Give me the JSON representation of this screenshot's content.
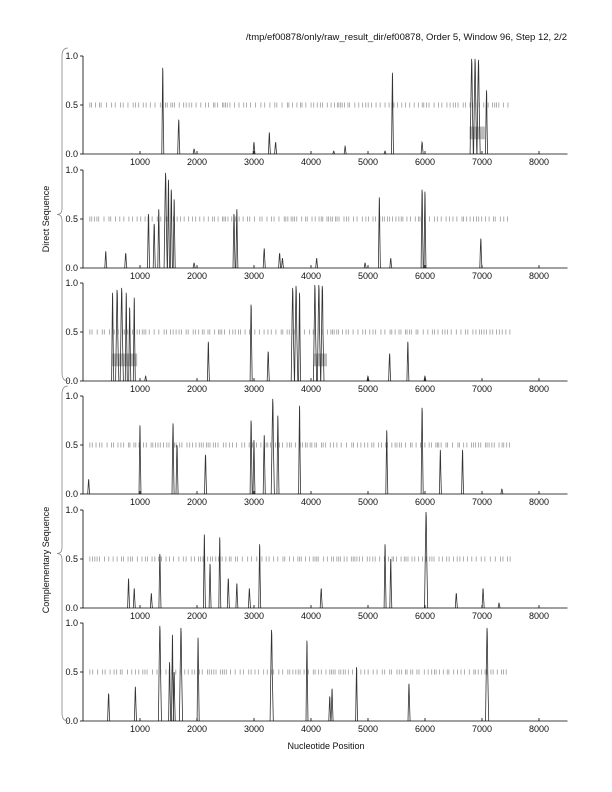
{
  "chart_data": {
    "type": "line",
    "title": "/tmp/ef00878/only/raw_result_dir/ef00878, Order 5, Window 96, Step 12, 2/2",
    "xlabel": "Nucleotide Position",
    "group_labels": [
      "Direct Sequence",
      "Complementary Sequence"
    ],
    "xlim": [
      0,
      8500
    ],
    "ylim": [
      0,
      1
    ],
    "xticks": [
      1000,
      2000,
      3000,
      4000,
      5000,
      6000,
      7000,
      8000
    ],
    "xtick_labels": [
      "1000",
      "2000",
      "3000",
      "4000",
      "5000",
      "6000",
      "7000",
      "8000"
    ],
    "yticks": [
      0,
      0.5,
      1
    ],
    "ytick_labels": [
      "0.0",
      "0.5",
      "1.0"
    ],
    "orf_mark_level": 0.5,
    "orf_mark_range": [
      120,
      7500
    ],
    "panels": [
      {
        "name": "direct-frame-1",
        "group": 0,
        "peaks": [
          [
            1400,
            0.88
          ],
          [
            1680,
            0.35
          ],
          [
            1950,
            0.05
          ],
          [
            3000,
            0.12
          ],
          [
            3270,
            0.22
          ],
          [
            3380,
            0.12
          ],
          [
            4400,
            0.03
          ],
          [
            4600,
            0.08
          ],
          [
            5300,
            0.03
          ],
          [
            5430,
            0.83
          ],
          [
            5950,
            0.12
          ],
          [
            6820,
            0.97
          ],
          [
            6880,
            0.97
          ],
          [
            6940,
            0.96
          ],
          [
            7080,
            0.65
          ]
        ],
        "boxes": [
          [
            6780,
            7050
          ]
        ]
      },
      {
        "name": "direct-frame-2",
        "group": 0,
        "peaks": [
          [
            400,
            0.17
          ],
          [
            750,
            0.15
          ],
          [
            1150,
            0.55
          ],
          [
            1250,
            0.45
          ],
          [
            1330,
            0.6
          ],
          [
            1450,
            0.97
          ],
          [
            1500,
            0.9
          ],
          [
            1550,
            0.8
          ],
          [
            1600,
            0.7
          ],
          [
            1950,
            0.05
          ],
          [
            2650,
            0.55
          ],
          [
            2700,
            0.6
          ],
          [
            3180,
            0.2
          ],
          [
            3450,
            0.15
          ],
          [
            3500,
            0.1
          ],
          [
            4100,
            0.1
          ],
          [
            4950,
            0.05
          ],
          [
            5200,
            0.72
          ],
          [
            5400,
            0.1
          ],
          [
            5950,
            0.8
          ],
          [
            6000,
            0.78
          ],
          [
            6980,
            0.3
          ]
        ],
        "boxes": []
      },
      {
        "name": "direct-frame-3",
        "group": 0,
        "peaks": [
          [
            520,
            0.9
          ],
          [
            600,
            0.93
          ],
          [
            680,
            0.95
          ],
          [
            760,
            0.9
          ],
          [
            820,
            0.75
          ],
          [
            900,
            0.85
          ],
          [
            1100,
            0.05
          ],
          [
            2200,
            0.4
          ],
          [
            2950,
            0.78
          ],
          [
            3250,
            0.3
          ],
          [
            3680,
            0.95
          ],
          [
            3740,
            0.97
          ],
          [
            3800,
            0.9
          ],
          [
            4070,
            0.98
          ],
          [
            4140,
            0.98
          ],
          [
            4200,
            0.97
          ],
          [
            5000,
            0.05
          ],
          [
            5380,
            0.28
          ],
          [
            5700,
            0.4
          ],
          [
            6000,
            0.05
          ]
        ],
        "boxes": [
          [
            500,
            950
          ],
          [
            4050,
            4280
          ]
        ]
      },
      {
        "name": "complementary-frame-1",
        "group": 1,
        "peaks": [
          [
            100,
            0.15
          ],
          [
            1000,
            0.7
          ],
          [
            1580,
            0.72
          ],
          [
            1650,
            0.5
          ],
          [
            2150,
            0.4
          ],
          [
            2950,
            0.75
          ],
          [
            3000,
            0.55
          ],
          [
            3180,
            0.6
          ],
          [
            3330,
            0.97
          ],
          [
            3420,
            0.8
          ],
          [
            3800,
            0.9
          ],
          [
            5330,
            0.65
          ],
          [
            5950,
            0.88
          ],
          [
            6270,
            0.45
          ],
          [
            6660,
            0.45
          ],
          [
            7350,
            0.05
          ]
        ],
        "boxes": []
      },
      {
        "name": "complementary-frame-2",
        "group": 1,
        "peaks": [
          [
            800,
            0.3
          ],
          [
            900,
            0.2
          ],
          [
            1200,
            0.15
          ],
          [
            1350,
            0.55
          ],
          [
            2130,
            0.75
          ],
          [
            2230,
            0.45
          ],
          [
            2400,
            0.72
          ],
          [
            2550,
            0.3
          ],
          [
            2700,
            0.25
          ],
          [
            2920,
            0.2
          ],
          [
            3100,
            0.65
          ],
          [
            4180,
            0.2
          ],
          [
            5300,
            0.65
          ],
          [
            5400,
            0.5
          ],
          [
            6020,
            0.98
          ],
          [
            6550,
            0.15
          ],
          [
            7020,
            0.2
          ],
          [
            7300,
            0.05
          ]
        ],
        "boxes": []
      },
      {
        "name": "complementary-frame-3",
        "group": 1,
        "peaks": [
          [
            450,
            0.28
          ],
          [
            920,
            0.35
          ],
          [
            1350,
            0.97
          ],
          [
            1520,
            0.6
          ],
          [
            1570,
            0.88
          ],
          [
            1600,
            0.5
          ],
          [
            1720,
            0.95
          ],
          [
            2020,
            0.85
          ],
          [
            3310,
            0.93
          ],
          [
            3930,
            0.82
          ],
          [
            4330,
            0.25
          ],
          [
            4370,
            0.33
          ],
          [
            4800,
            0.55
          ],
          [
            5720,
            0.38
          ],
          [
            7090,
            0.95
          ]
        ],
        "boxes": []
      }
    ]
  }
}
